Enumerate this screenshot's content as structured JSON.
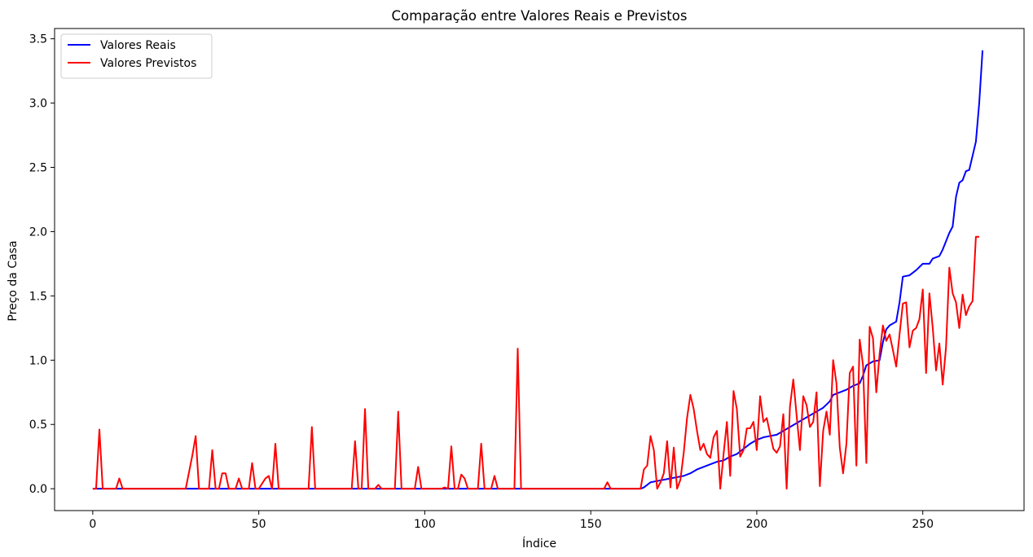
{
  "chart_data": {
    "type": "line",
    "title": "Comparação entre Valores Reais e Previstos",
    "xlabel": "Índice",
    "ylabel": "Preço da Casa",
    "xlim": [
      -11.5,
      280.5
    ],
    "ylim": [
      -0.17,
      3.58
    ],
    "x_ticks": [
      0,
      50,
      100,
      150,
      200,
      250
    ],
    "y_ticks": [
      0.0,
      0.5,
      1.0,
      1.5,
      2.0,
      2.5,
      3.0,
      3.5
    ],
    "x_tick_labels": [
      "0",
      "50",
      "100",
      "150",
      "200",
      "250"
    ],
    "y_tick_labels": [
      "0.0",
      "0.5",
      "1.0",
      "1.5",
      "2.0",
      "2.5",
      "3.0",
      "3.5"
    ],
    "grid": false,
    "legend_position": "top-left",
    "series": [
      {
        "name": "Valores Reais",
        "color": "#0000ff",
        "points": [
          [
            0,
            0
          ],
          [
            165,
            0
          ],
          [
            166,
            0.01
          ],
          [
            167,
            0.03
          ],
          [
            168,
            0.05
          ],
          [
            170,
            0.06
          ],
          [
            172,
            0.07
          ],
          [
            174,
            0.08
          ],
          [
            176,
            0.09
          ],
          [
            178,
            0.1
          ],
          [
            180,
            0.12
          ],
          [
            182,
            0.15
          ],
          [
            184,
            0.17
          ],
          [
            186,
            0.19
          ],
          [
            188,
            0.21
          ],
          [
            190,
            0.22
          ],
          [
            192,
            0.25
          ],
          [
            194,
            0.27
          ],
          [
            196,
            0.31
          ],
          [
            198,
            0.35
          ],
          [
            200,
            0.38
          ],
          [
            202,
            0.4
          ],
          [
            204,
            0.41
          ],
          [
            206,
            0.42
          ],
          [
            208,
            0.45
          ],
          [
            210,
            0.48
          ],
          [
            212,
            0.51
          ],
          [
            214,
            0.54
          ],
          [
            216,
            0.57
          ],
          [
            218,
            0.6
          ],
          [
            220,
            0.63
          ],
          [
            222,
            0.68
          ],
          [
            223,
            0.73
          ],
          [
            225,
            0.75
          ],
          [
            227,
            0.77
          ],
          [
            229,
            0.8
          ],
          [
            231,
            0.82
          ],
          [
            232,
            0.88
          ],
          [
            233,
            0.96
          ],
          [
            235,
            0.99
          ],
          [
            237,
            1.0
          ],
          [
            238,
            1.14
          ],
          [
            239,
            1.24
          ],
          [
            240,
            1.27
          ],
          [
            242,
            1.3
          ],
          [
            243,
            1.45
          ],
          [
            244,
            1.65
          ],
          [
            246,
            1.66
          ],
          [
            248,
            1.7
          ],
          [
            250,
            1.75
          ],
          [
            252,
            1.75
          ],
          [
            253,
            1.79
          ],
          [
            255,
            1.81
          ],
          [
            256,
            1.86
          ],
          [
            258,
            1.99
          ],
          [
            259,
            2.04
          ],
          [
            260,
            2.27
          ],
          [
            261,
            2.38
          ],
          [
            262,
            2.4
          ],
          [
            263,
            2.47
          ],
          [
            264,
            2.48
          ],
          [
            266,
            2.7
          ],
          [
            267,
            3.0
          ],
          [
            268,
            3.41
          ]
        ]
      },
      {
        "name": "Valores Previstos",
        "color": "#ff0000",
        "points": [
          [
            0,
            0
          ],
          [
            1,
            0
          ],
          [
            2,
            0.46
          ],
          [
            3,
            0
          ],
          [
            7,
            0
          ],
          [
            8,
            0.08
          ],
          [
            9,
            0
          ],
          [
            28,
            0
          ],
          [
            30,
            0.26
          ],
          [
            31,
            0.41
          ],
          [
            32,
            0
          ],
          [
            35,
            0
          ],
          [
            36,
            0.3
          ],
          [
            37,
            0
          ],
          [
            38,
            0
          ],
          [
            39,
            0.12
          ],
          [
            40,
            0.12
          ],
          [
            41,
            0
          ],
          [
            43,
            0
          ],
          [
            44,
            0.08
          ],
          [
            45,
            0
          ],
          [
            47,
            0
          ],
          [
            48,
            0.2
          ],
          [
            49,
            0
          ],
          [
            50,
            0
          ],
          [
            52,
            0.08
          ],
          [
            53,
            0.1
          ],
          [
            54,
            0
          ],
          [
            55,
            0.35
          ],
          [
            56,
            0
          ],
          [
            65,
            0
          ],
          [
            66,
            0.48
          ],
          [
            67,
            0
          ],
          [
            78,
            0
          ],
          [
            79,
            0.37
          ],
          [
            80,
            0
          ],
          [
            81,
            0
          ],
          [
            82,
            0.62
          ],
          [
            83,
            0
          ],
          [
            85,
            0
          ],
          [
            86,
            0.03
          ],
          [
            87,
            0
          ],
          [
            91,
            0
          ],
          [
            92,
            0.6
          ],
          [
            93,
            0
          ],
          [
            97,
            0
          ],
          [
            98,
            0.17
          ],
          [
            99,
            0
          ],
          [
            105,
            0
          ],
          [
            106,
            0.01
          ],
          [
            107,
            0
          ],
          [
            108,
            0.33
          ],
          [
            109,
            0
          ],
          [
            110,
            0
          ],
          [
            111,
            0.11
          ],
          [
            112,
            0.08
          ],
          [
            113,
            0
          ],
          [
            116,
            0
          ],
          [
            117,
            0.35
          ],
          [
            118,
            0
          ],
          [
            120,
            0
          ],
          [
            121,
            0.1
          ],
          [
            122,
            0
          ],
          [
            127,
            0
          ],
          [
            128,
            1.09
          ],
          [
            129,
            0
          ],
          [
            154,
            0
          ],
          [
            155,
            0.05
          ],
          [
            156,
            0
          ],
          [
            165,
            0
          ],
          [
            166,
            0.15
          ],
          [
            167,
            0.18
          ],
          [
            168,
            0.41
          ],
          [
            169,
            0.3
          ],
          [
            170,
            0
          ],
          [
            171,
            0.05
          ],
          [
            172,
            0.12
          ],
          [
            173,
            0.37
          ],
          [
            174,
            0.01
          ],
          [
            175,
            0.32
          ],
          [
            176,
            0
          ],
          [
            177,
            0.07
          ],
          [
            178,
            0.28
          ],
          [
            179,
            0.55
          ],
          [
            180,
            0.73
          ],
          [
            181,
            0.62
          ],
          [
            182,
            0.45
          ],
          [
            183,
            0.3
          ],
          [
            184,
            0.35
          ],
          [
            185,
            0.27
          ],
          [
            186,
            0.24
          ],
          [
            187,
            0.4
          ],
          [
            188,
            0.45
          ],
          [
            189,
            0
          ],
          [
            190,
            0.27
          ],
          [
            191,
            0.52
          ],
          [
            192,
            0.1
          ],
          [
            193,
            0.76
          ],
          [
            194,
            0.62
          ],
          [
            195,
            0.25
          ],
          [
            196,
            0.3
          ],
          [
            197,
            0.47
          ],
          [
            198,
            0.47
          ],
          [
            199,
            0.52
          ],
          [
            200,
            0.3
          ],
          [
            201,
            0.72
          ],
          [
            202,
            0.52
          ],
          [
            203,
            0.55
          ],
          [
            204,
            0.43
          ],
          [
            205,
            0.31
          ],
          [
            206,
            0.28
          ],
          [
            207,
            0.33
          ],
          [
            208,
            0.58
          ],
          [
            209,
            0
          ],
          [
            210,
            0.64
          ],
          [
            211,
            0.85
          ],
          [
            212,
            0.57
          ],
          [
            213,
            0.3
          ],
          [
            214,
            0.72
          ],
          [
            215,
            0.65
          ],
          [
            216,
            0.48
          ],
          [
            217,
            0.52
          ],
          [
            218,
            0.75
          ],
          [
            219,
            0.02
          ],
          [
            220,
            0.45
          ],
          [
            221,
            0.6
          ],
          [
            222,
            0.42
          ],
          [
            223,
            1.0
          ],
          [
            224,
            0.82
          ],
          [
            225,
            0.32
          ],
          [
            226,
            0.12
          ],
          [
            227,
            0.35
          ],
          [
            228,
            0.9
          ],
          [
            229,
            0.95
          ],
          [
            230,
            0.18
          ],
          [
            231,
            1.16
          ],
          [
            232,
            0.96
          ],
          [
            233,
            0.2
          ],
          [
            234,
            1.26
          ],
          [
            235,
            1.17
          ],
          [
            236,
            0.75
          ],
          [
            237,
            1.05
          ],
          [
            238,
            1.27
          ],
          [
            239,
            1.15
          ],
          [
            240,
            1.2
          ],
          [
            241,
            1.08
          ],
          [
            242,
            0.95
          ],
          [
            243,
            1.2
          ],
          [
            244,
            1.44
          ],
          [
            245,
            1.45
          ],
          [
            246,
            1.1
          ],
          [
            247,
            1.23
          ],
          [
            248,
            1.25
          ],
          [
            249,
            1.32
          ],
          [
            250,
            1.55
          ],
          [
            251,
            0.9
          ],
          [
            252,
            1.52
          ],
          [
            253,
            1.25
          ],
          [
            254,
            0.92
          ],
          [
            255,
            1.13
          ],
          [
            256,
            0.81
          ],
          [
            257,
            1.1
          ],
          [
            258,
            1.72
          ],
          [
            259,
            1.52
          ],
          [
            260,
            1.45
          ],
          [
            261,
            1.25
          ],
          [
            262,
            1.51
          ],
          [
            263,
            1.35
          ],
          [
            264,
            1.42
          ],
          [
            265,
            1.46
          ],
          [
            266,
            1.96
          ],
          [
            267,
            1.96
          ]
        ]
      }
    ]
  }
}
